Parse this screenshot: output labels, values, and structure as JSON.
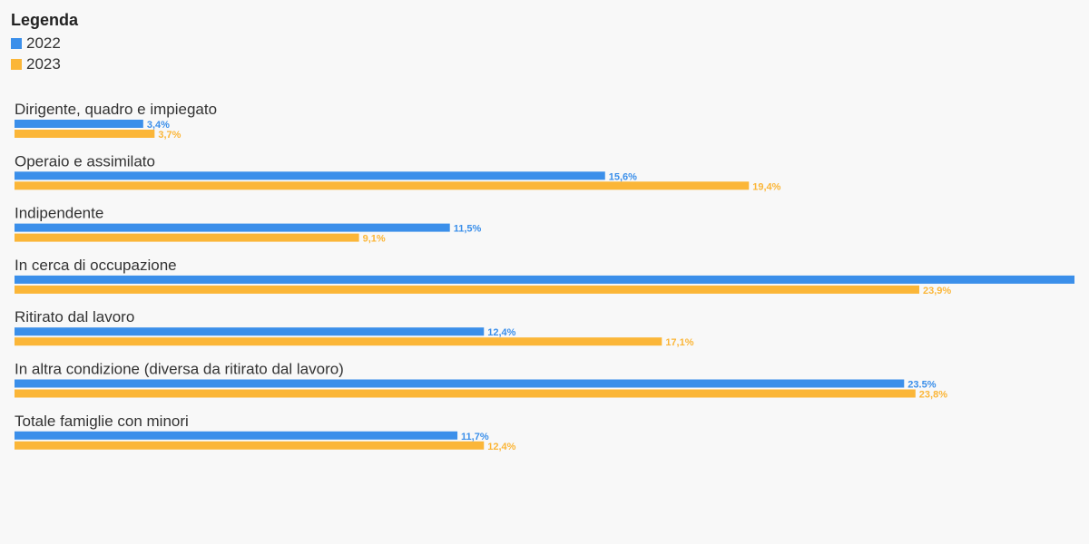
{
  "chart_data": {
    "type": "bar",
    "orientation": "horizontal",
    "legend_title": "Legenda",
    "legend_position": "top-left",
    "categories": [
      "Dirigente, quadro e impiegato",
      "Operaio e assimilato",
      "Indipendente",
      "In cerca di occupazione",
      "Ritirato dal lavoro",
      "In altra condizione (diversa da ritirato dal lavoro)",
      "Totale famiglie con minori"
    ],
    "series": [
      {
        "name": "2022",
        "color": "#3b8fea",
        "values": [
          3.4,
          15.6,
          11.5,
          28.0,
          12.4,
          23.5,
          11.7
        ],
        "labels": [
          "3,4%",
          "15,6%",
          "11,5%",
          "",
          "12,4%",
          "23.5%",
          "11,7%"
        ]
      },
      {
        "name": "2023",
        "color": "#fbb638",
        "values": [
          3.7,
          19.4,
          9.1,
          23.9,
          17.1,
          23.8,
          12.4
        ],
        "labels": [
          "3,7%",
          "19,4%",
          "9,1%",
          "23,9%",
          "17,1%",
          "23,8%",
          "12,4%"
        ]
      }
    ],
    "xlim": [
      0,
      28.0
    ],
    "grid": false
  }
}
